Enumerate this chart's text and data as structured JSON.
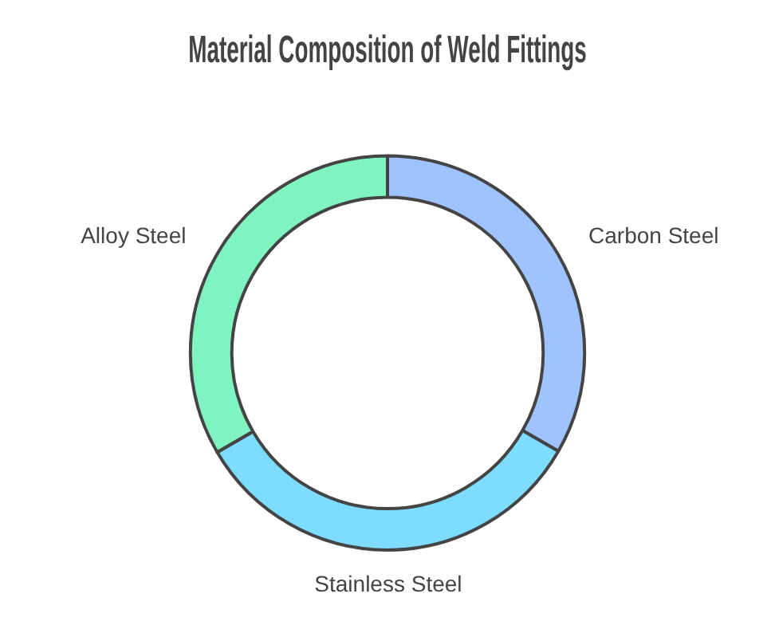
{
  "chart_data": {
    "type": "donut",
    "title": "Material Composition of Weld Fittings",
    "categories": [
      "Carbon Steel",
      "Stainless Steel",
      "Alloy Steel"
    ],
    "values": [
      33.3,
      33.3,
      33.4
    ],
    "colors": [
      "#9fc3ff",
      "#7ddcff",
      "#80f4c0"
    ],
    "legend": false
  }
}
